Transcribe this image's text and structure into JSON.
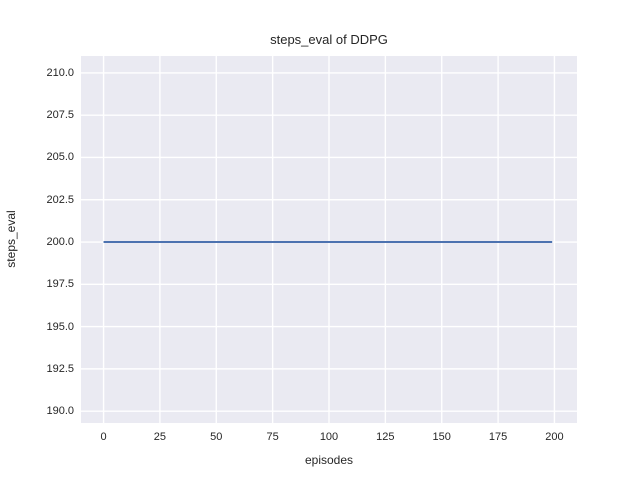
{
  "chart_data": {
    "type": "line",
    "title": "steps_eval of DDPG",
    "xlabel": "episodes",
    "ylabel": "steps_eval",
    "x": [
      0,
      199
    ],
    "series": [
      {
        "name": "steps_eval",
        "values": [
          200,
          200
        ],
        "color": "#4C72B0"
      }
    ],
    "note": "constant line: steps_eval stays at 200 for every episode from 0 to 199",
    "xlim": [
      -10,
      210
    ],
    "ylim": [
      189.3,
      211.0
    ],
    "xticks": [
      0,
      25,
      50,
      75,
      100,
      125,
      150,
      175,
      200
    ],
    "xtick_labels": [
      "0",
      "25",
      "50",
      "75",
      "100",
      "125",
      "150",
      "175",
      "200"
    ],
    "yticks": [
      190.0,
      192.5,
      195.0,
      197.5,
      200.0,
      202.5,
      205.0,
      207.5,
      210.0
    ],
    "ytick_labels": [
      "190.0",
      "192.5",
      "195.0",
      "197.5",
      "200.0",
      "202.5",
      "205.0",
      "207.5",
      "210.0"
    ],
    "grid": true,
    "legend_position": "none",
    "plot_bg_color": "#EAEAF2",
    "grid_color": "#FFFFFF",
    "text_color": "#262626",
    "line_width": 2
  }
}
